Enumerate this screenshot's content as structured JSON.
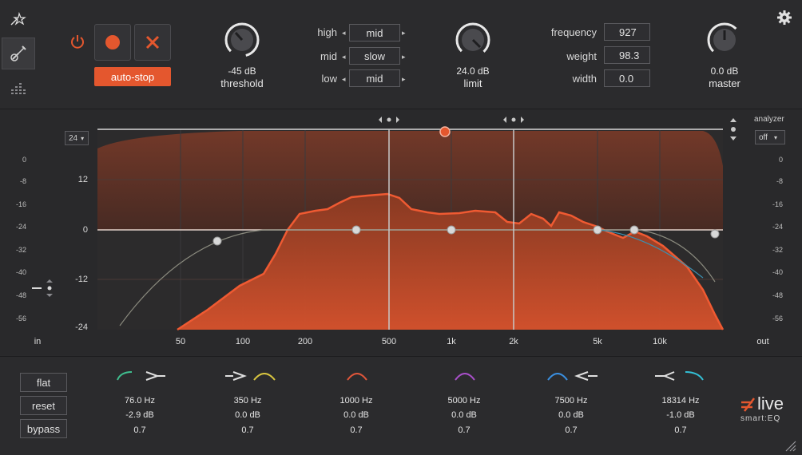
{
  "controls": {
    "autostop_label": "auto-stop",
    "threshold_value": "-45 dB",
    "threshold_label": "threshold",
    "limit_value": "24.0 dB",
    "limit_label": "limit",
    "master_value": "0.0 dB",
    "master_label": "master"
  },
  "modes": {
    "high_label": "high",
    "high_value": "mid",
    "mid_label": "mid",
    "mid_value": "slow",
    "low_label": "low",
    "low_value": "mid"
  },
  "params": {
    "frequency_label": "frequency",
    "frequency_value": "927",
    "weight_label": "weight",
    "weight_value": "98.3",
    "width_label": "width",
    "width_value": "0.0"
  },
  "eq": {
    "range_value": "24",
    "analyzer_label": "analyzer",
    "analyzer_value": "off",
    "in_label": "in",
    "out_label": "out",
    "meter_scale": [
      "0",
      "-8",
      "-16",
      "-24",
      "-32",
      "-40",
      "-48",
      "-56"
    ],
    "gain_labels": [
      "12",
      "0",
      "-12",
      "-24"
    ],
    "freq_labels": [
      "50",
      "100",
      "200",
      "500",
      "1k",
      "2k",
      "5k",
      "10k"
    ]
  },
  "footer": {
    "flat_label": "flat",
    "reset_label": "reset",
    "bypass_label": "bypass",
    "bands": [
      {
        "freq": "76.0 Hz",
        "gain": "-2.9 dB",
        "q": "0.7",
        "color": "#3fbf8f"
      },
      {
        "freq": "350 Hz",
        "gain": "0.0 dB",
        "q": "0.7",
        "color": "#d9c640"
      },
      {
        "freq": "1000 Hz",
        "gain": "0.0 dB",
        "q": "0.7",
        "color": "#e0563a"
      },
      {
        "freq": "5000 Hz",
        "gain": "0.0 dB",
        "q": "0.7",
        "color": "#a84fc9"
      },
      {
        "freq": "7500 Hz",
        "gain": "0.0 dB",
        "q": "0.7",
        "color": "#3a8fe0"
      },
      {
        "freq": "18314 Hz",
        "gain": "-1.0 dB",
        "q": "0.7",
        "color": "#33c0d6"
      }
    ],
    "brand": "live",
    "brand_sub": "smart:EQ"
  },
  "colors": {
    "accent": "#e4572e",
    "background": "#2a2a2c"
  }
}
